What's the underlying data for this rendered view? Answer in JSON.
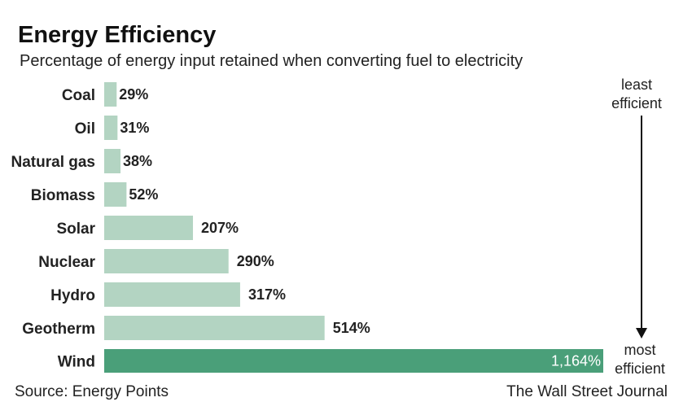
{
  "chart_data": {
    "type": "bar",
    "orientation": "horizontal",
    "title": "Energy Efficiency",
    "subtitle": "Percentage of energy input retained when converting fuel to electricity",
    "categories": [
      "Coal",
      "Oil",
      "Natural gas",
      "Biomass",
      "Solar",
      "Nuclear",
      "Hydro",
      "Geotherm",
      "Wind"
    ],
    "values": [
      29,
      31,
      38,
      52,
      207,
      290,
      317,
      514,
      1164
    ],
    "value_labels": [
      "29%",
      "31%",
      "38%",
      "52%",
      "207%",
      "290%",
      "317%",
      "514%",
      "1,164%"
    ],
    "xlim": [
      0,
      1164
    ],
    "grid": false,
    "annotation_top": [
      "least",
      "efficient"
    ],
    "annotation_bottom": [
      "most",
      "efficient"
    ],
    "source": "Source: Energy Points",
    "credit": "The Wall Street Journal",
    "colors": {
      "bar": "#b3d4c2",
      "highlight": "#4a9f79",
      "text": "#222222"
    }
  }
}
